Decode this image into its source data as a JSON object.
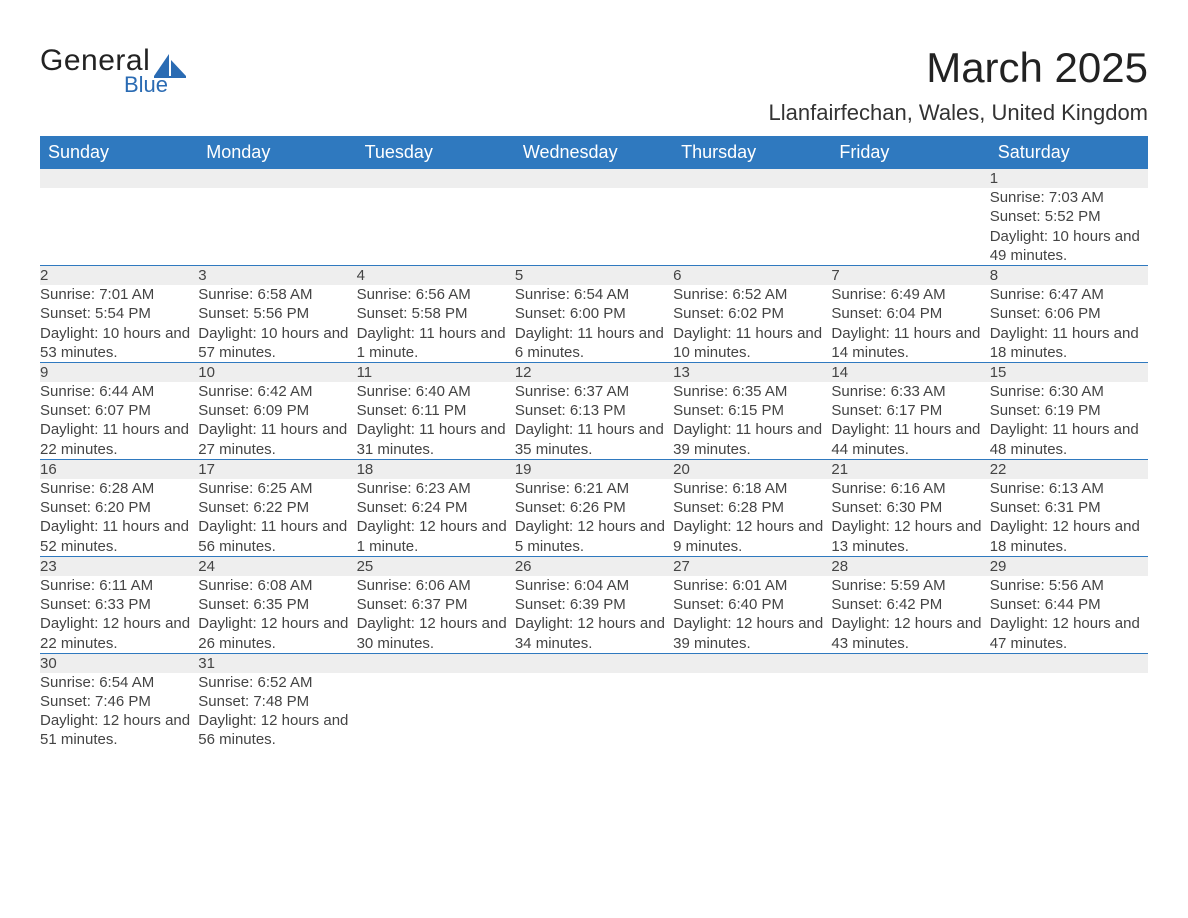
{
  "brand": {
    "main": "General",
    "sub": "Blue",
    "accent": "#2a6bb3"
  },
  "title": "March 2025",
  "location": "Llanfairfechan, Wales, United Kingdom",
  "header_bg": "#2f79bf",
  "header_fg": "#ffffff",
  "daynum_bg": "#eeeeee",
  "border_color": "#2f79bf",
  "weekdays": [
    "Sunday",
    "Monday",
    "Tuesday",
    "Wednesday",
    "Thursday",
    "Friday",
    "Saturday"
  ],
  "weeks": [
    [
      null,
      null,
      null,
      null,
      null,
      null,
      {
        "n": "1",
        "sunrise": "Sunrise: 7:03 AM",
        "sunset": "Sunset: 5:52 PM",
        "daylight": "Daylight: 10 hours and 49 minutes."
      }
    ],
    [
      {
        "n": "2",
        "sunrise": "Sunrise: 7:01 AM",
        "sunset": "Sunset: 5:54 PM",
        "daylight": "Daylight: 10 hours and 53 minutes."
      },
      {
        "n": "3",
        "sunrise": "Sunrise: 6:58 AM",
        "sunset": "Sunset: 5:56 PM",
        "daylight": "Daylight: 10 hours and 57 minutes."
      },
      {
        "n": "4",
        "sunrise": "Sunrise: 6:56 AM",
        "sunset": "Sunset: 5:58 PM",
        "daylight": "Daylight: 11 hours and 1 minute."
      },
      {
        "n": "5",
        "sunrise": "Sunrise: 6:54 AM",
        "sunset": "Sunset: 6:00 PM",
        "daylight": "Daylight: 11 hours and 6 minutes."
      },
      {
        "n": "6",
        "sunrise": "Sunrise: 6:52 AM",
        "sunset": "Sunset: 6:02 PM",
        "daylight": "Daylight: 11 hours and 10 minutes."
      },
      {
        "n": "7",
        "sunrise": "Sunrise: 6:49 AM",
        "sunset": "Sunset: 6:04 PM",
        "daylight": "Daylight: 11 hours and 14 minutes."
      },
      {
        "n": "8",
        "sunrise": "Sunrise: 6:47 AM",
        "sunset": "Sunset: 6:06 PM",
        "daylight": "Daylight: 11 hours and 18 minutes."
      }
    ],
    [
      {
        "n": "9",
        "sunrise": "Sunrise: 6:44 AM",
        "sunset": "Sunset: 6:07 PM",
        "daylight": "Daylight: 11 hours and 22 minutes."
      },
      {
        "n": "10",
        "sunrise": "Sunrise: 6:42 AM",
        "sunset": "Sunset: 6:09 PM",
        "daylight": "Daylight: 11 hours and 27 minutes."
      },
      {
        "n": "11",
        "sunrise": "Sunrise: 6:40 AM",
        "sunset": "Sunset: 6:11 PM",
        "daylight": "Daylight: 11 hours and 31 minutes."
      },
      {
        "n": "12",
        "sunrise": "Sunrise: 6:37 AM",
        "sunset": "Sunset: 6:13 PM",
        "daylight": "Daylight: 11 hours and 35 minutes."
      },
      {
        "n": "13",
        "sunrise": "Sunrise: 6:35 AM",
        "sunset": "Sunset: 6:15 PM",
        "daylight": "Daylight: 11 hours and 39 minutes."
      },
      {
        "n": "14",
        "sunrise": "Sunrise: 6:33 AM",
        "sunset": "Sunset: 6:17 PM",
        "daylight": "Daylight: 11 hours and 44 minutes."
      },
      {
        "n": "15",
        "sunrise": "Sunrise: 6:30 AM",
        "sunset": "Sunset: 6:19 PM",
        "daylight": "Daylight: 11 hours and 48 minutes."
      }
    ],
    [
      {
        "n": "16",
        "sunrise": "Sunrise: 6:28 AM",
        "sunset": "Sunset: 6:20 PM",
        "daylight": "Daylight: 11 hours and 52 minutes."
      },
      {
        "n": "17",
        "sunrise": "Sunrise: 6:25 AM",
        "sunset": "Sunset: 6:22 PM",
        "daylight": "Daylight: 11 hours and 56 minutes."
      },
      {
        "n": "18",
        "sunrise": "Sunrise: 6:23 AM",
        "sunset": "Sunset: 6:24 PM",
        "daylight": "Daylight: 12 hours and 1 minute."
      },
      {
        "n": "19",
        "sunrise": "Sunrise: 6:21 AM",
        "sunset": "Sunset: 6:26 PM",
        "daylight": "Daylight: 12 hours and 5 minutes."
      },
      {
        "n": "20",
        "sunrise": "Sunrise: 6:18 AM",
        "sunset": "Sunset: 6:28 PM",
        "daylight": "Daylight: 12 hours and 9 minutes."
      },
      {
        "n": "21",
        "sunrise": "Sunrise: 6:16 AM",
        "sunset": "Sunset: 6:30 PM",
        "daylight": "Daylight: 12 hours and 13 minutes."
      },
      {
        "n": "22",
        "sunrise": "Sunrise: 6:13 AM",
        "sunset": "Sunset: 6:31 PM",
        "daylight": "Daylight: 12 hours and 18 minutes."
      }
    ],
    [
      {
        "n": "23",
        "sunrise": "Sunrise: 6:11 AM",
        "sunset": "Sunset: 6:33 PM",
        "daylight": "Daylight: 12 hours and 22 minutes."
      },
      {
        "n": "24",
        "sunrise": "Sunrise: 6:08 AM",
        "sunset": "Sunset: 6:35 PM",
        "daylight": "Daylight: 12 hours and 26 minutes."
      },
      {
        "n": "25",
        "sunrise": "Sunrise: 6:06 AM",
        "sunset": "Sunset: 6:37 PM",
        "daylight": "Daylight: 12 hours and 30 minutes."
      },
      {
        "n": "26",
        "sunrise": "Sunrise: 6:04 AM",
        "sunset": "Sunset: 6:39 PM",
        "daylight": "Daylight: 12 hours and 34 minutes."
      },
      {
        "n": "27",
        "sunrise": "Sunrise: 6:01 AM",
        "sunset": "Sunset: 6:40 PM",
        "daylight": "Daylight: 12 hours and 39 minutes."
      },
      {
        "n": "28",
        "sunrise": "Sunrise: 5:59 AM",
        "sunset": "Sunset: 6:42 PM",
        "daylight": "Daylight: 12 hours and 43 minutes."
      },
      {
        "n": "29",
        "sunrise": "Sunrise: 5:56 AM",
        "sunset": "Sunset: 6:44 PM",
        "daylight": "Daylight: 12 hours and 47 minutes."
      }
    ],
    [
      {
        "n": "30",
        "sunrise": "Sunrise: 6:54 AM",
        "sunset": "Sunset: 7:46 PM",
        "daylight": "Daylight: 12 hours and 51 minutes."
      },
      {
        "n": "31",
        "sunrise": "Sunrise: 6:52 AM",
        "sunset": "Sunset: 7:48 PM",
        "daylight": "Daylight: 12 hours and 56 minutes."
      },
      null,
      null,
      null,
      null,
      null
    ]
  ]
}
